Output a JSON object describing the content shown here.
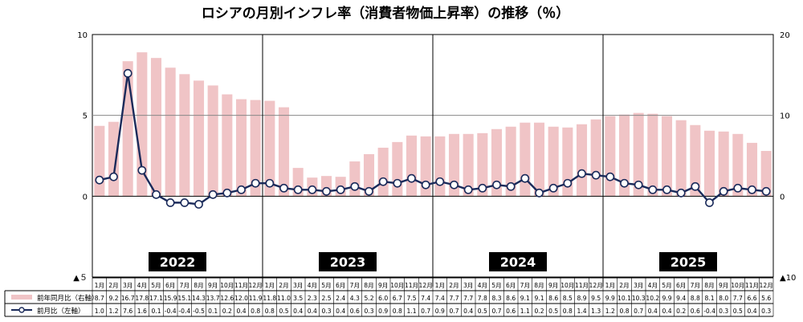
{
  "chart_data": {
    "type": "bar+line",
    "title": "ロシアの月別インフレ率（消費者物価上昇率）の推移（％）",
    "left_axis": {
      "ticks": [
        {
          "value": 10,
          "label": "10"
        },
        {
          "value": 5,
          "label": "5"
        },
        {
          "value": 0,
          "label": "0"
        },
        {
          "value": -5,
          "label": "▲５"
        }
      ],
      "range": [
        -5,
        10
      ]
    },
    "right_axis": {
      "ticks": [
        {
          "value": 20,
          "label": "20"
        },
        {
          "value": 10,
          "label": "10"
        },
        {
          "value": 0,
          "label": "0"
        },
        {
          "value": -10,
          "label": "▲10"
        }
      ],
      "range": [
        -10,
        20
      ]
    },
    "years": [
      "2022",
      "2023",
      "2024",
      "2025"
    ],
    "months": [
      "1月",
      "2月",
      "3月",
      "4月",
      "5月",
      "6月",
      "7月",
      "8月",
      "9月",
      "10月",
      "11月",
      "12月",
      "1月",
      "2月",
      "3月",
      "4月",
      "5月",
      "6月",
      "7月",
      "8月",
      "9月",
      "10月",
      "11月",
      "12月",
      "1月",
      "2月",
      "3月",
      "4月",
      "5月",
      "6月",
      "7月",
      "8月",
      "9月",
      "10月",
      "11月",
      "12月",
      "1月",
      "2月",
      "3月",
      "4月",
      "5月",
      "6月",
      "7月",
      "8月",
      "9月",
      "10月",
      "11月",
      "12月"
    ],
    "series": [
      {
        "name": "前年同月比（右軸）",
        "type": "bar",
        "axis": "right",
        "color": "#f0c4c6",
        "values": [
          8.7,
          9.2,
          16.7,
          17.8,
          17.1,
          15.9,
          15.1,
          14.3,
          13.7,
          12.6,
          12.0,
          11.9,
          11.8,
          11.0,
          3.5,
          2.3,
          2.5,
          2.4,
          4.3,
          5.2,
          6.0,
          6.7,
          7.5,
          7.4,
          7.4,
          7.7,
          7.7,
          7.8,
          8.3,
          8.6,
          9.1,
          9.1,
          8.6,
          8.5,
          8.9,
          9.5,
          9.9,
          10.1,
          10.3,
          10.2,
          9.9,
          9.4,
          8.8,
          8.1,
          8.0,
          7.7,
          6.6,
          5.6
        ],
        "labels": [
          "8.7",
          "9.2",
          "16.7",
          "17.8",
          "17.1",
          "15.9",
          "15.1",
          "14.3",
          "13.7",
          "12.6",
          "12.0",
          "11.9",
          "11.8",
          "11.0",
          "3.5",
          "2.3",
          "2.5",
          "2.4",
          "4.3",
          "5.2",
          "6.0",
          "6.7",
          "7.5",
          "7.4",
          "7.4",
          "7.7",
          "7.7",
          "7.8",
          "8.3",
          "8.6",
          "9.1",
          "9.1",
          "8.6",
          "8.5",
          "8.9",
          "9.5",
          "9.9",
          "10.1",
          "10.3",
          "10.2",
          "9.9",
          "9.4",
          "8.8",
          "8.1",
          "8.0",
          "7.7",
          "6.6",
          "5.6"
        ]
      },
      {
        "name": "前月比（左軸）",
        "type": "line",
        "axis": "left",
        "color": "#1a2a5a",
        "values": [
          1.0,
          1.2,
          7.6,
          1.6,
          0.1,
          -0.4,
          -0.4,
          -0.5,
          0.1,
          0.2,
          0.4,
          0.8,
          0.8,
          0.5,
          0.4,
          0.4,
          0.3,
          0.4,
          0.6,
          0.3,
          0.9,
          0.8,
          1.1,
          0.7,
          0.9,
          0.7,
          0.4,
          0.5,
          0.7,
          0.6,
          1.1,
          0.2,
          0.5,
          0.8,
          1.4,
          1.3,
          1.2,
          0.8,
          0.7,
          0.4,
          0.4,
          0.2,
          0.6,
          -0.4,
          0.3,
          0.5,
          0.4,
          0.3
        ],
        "labels": [
          "1.0",
          "1.2",
          "7.6",
          "1.6",
          "0.1",
          "-0.4",
          "-0.4",
          "-0.5",
          "0.1",
          "0.2",
          "0.4",
          "0.8",
          "0.8",
          "0.5",
          "0.4",
          "0.4",
          "0.3",
          "0.4",
          "0.6",
          "0.3",
          "0.9",
          "0.8",
          "1.1",
          "0.7",
          "0.9",
          "0.7",
          "0.4",
          "0.5",
          "0.7",
          "0.6",
          "1.1",
          "0.2",
          "0.5",
          "0.8",
          "1.4",
          "1.3",
          "1.2",
          "0.8",
          "0.7",
          "0.4",
          "0.4",
          "0.2",
          "0.6",
          "-0.4",
          "0.3",
          "0.5",
          "0.4",
          "0.3"
        ]
      }
    ],
    "gridlines": [
      5
    ],
    "legend": "bottom-left table"
  }
}
